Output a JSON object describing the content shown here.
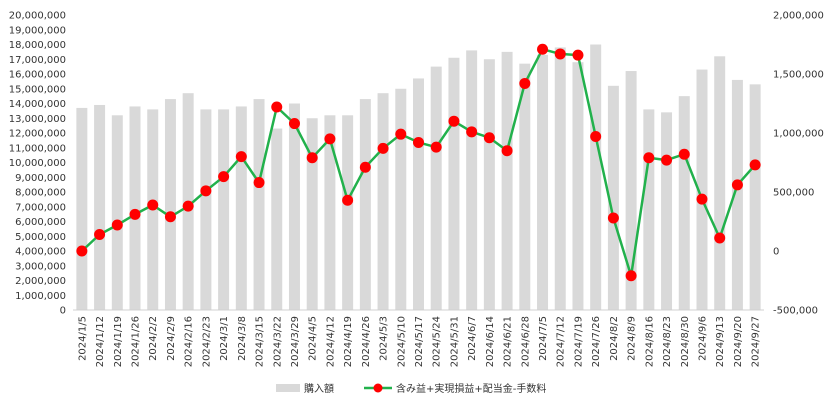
{
  "chart_data": {
    "type": "bar+line",
    "title": "",
    "categories": [
      "2024/1/5",
      "2024/1/12",
      "2024/1/19",
      "2024/1/26",
      "2024/2/2",
      "2024/2/9",
      "2024/2/16",
      "2024/2/23",
      "2024/3/1",
      "2024/3/8",
      "2024/3/15",
      "2024/3/22",
      "2024/3/29",
      "2024/4/5",
      "2024/4/12",
      "2024/4/19",
      "2024/4/26",
      "2024/5/3",
      "2024/5/10",
      "2024/5/17",
      "2024/5/24",
      "2024/5/31",
      "2024/6/7",
      "2024/6/14",
      "2024/6/21",
      "2024/6/28",
      "2024/7/5",
      "2024/7/12",
      "2024/7/19",
      "2024/7/26",
      "2024/8/2",
      "2024/8/9",
      "2024/8/16",
      "2024/8/23",
      "2024/8/30",
      "2024/9/6",
      "2024/9/13",
      "2024/9/20",
      "2024/9/27"
    ],
    "series": [
      {
        "name": "購入額",
        "type": "bar",
        "axis": "left",
        "color": "#d9d9d9",
        "values": [
          13700000,
          13900000,
          13200000,
          13800000,
          13600000,
          14300000,
          14700000,
          13600000,
          13600000,
          13800000,
          14300000,
          12300000,
          14000000,
          13000000,
          13200000,
          13200000,
          14300000,
          14700000,
          15000000,
          15700000,
          16500000,
          17100000,
          17600000,
          17000000,
          17500000,
          16700000,
          17300000,
          17800000,
          16800000,
          18000000,
          15200000,
          16200000,
          13600000,
          13400000,
          14500000,
          16300000,
          17200000,
          15600000,
          15300000
        ]
      },
      {
        "name": "含み益+実現損益+配当金-手数料",
        "type": "line",
        "axis": "right",
        "color": "#22b14c",
        "marker_color": "#ff0000",
        "values": [
          0,
          140000,
          220000,
          310000,
          390000,
          290000,
          380000,
          510000,
          630000,
          800000,
          580000,
          1220000,
          1080000,
          790000,
          950000,
          430000,
          710000,
          870000,
          990000,
          920000,
          880000,
          1100000,
          1010000,
          960000,
          850000,
          1420000,
          1710000,
          1670000,
          1660000,
          970000,
          280000,
          -210000,
          790000,
          770000,
          820000,
          440000,
          110000,
          560000,
          730000
        ]
      }
    ],
    "y_left": {
      "min": 0,
      "max": 20000000,
      "step": 1000000
    },
    "y_right": {
      "min": -500000,
      "max": 2000000,
      "step": 500000
    },
    "grid": false,
    "legend_position": "bottom"
  },
  "axis_labels": {
    "left": [
      "0",
      "1,000,000",
      "2,000,000",
      "3,000,000",
      "4,000,000",
      "5,000,000",
      "6,000,000",
      "7,000,000",
      "8,000,000",
      "9,000,000",
      "10,000,000",
      "11,000,000",
      "12,000,000",
      "13,000,000",
      "14,000,000",
      "15,000,000",
      "16,000,000",
      "17,000,000",
      "18,000,000",
      "19,000,000",
      "20,000,000"
    ],
    "right": [
      "-500,000",
      "0",
      "500,000",
      "1,000,000",
      "1,500,000",
      "2,000,000"
    ]
  },
  "legend": {
    "bar_label": "購入額",
    "line_label": "含み益+実現損益+配当金-手数料"
  },
  "colors": {
    "bar": "#d9d9d9",
    "line": "#22b14c",
    "marker": "#ff0000",
    "text": "#333333"
  }
}
